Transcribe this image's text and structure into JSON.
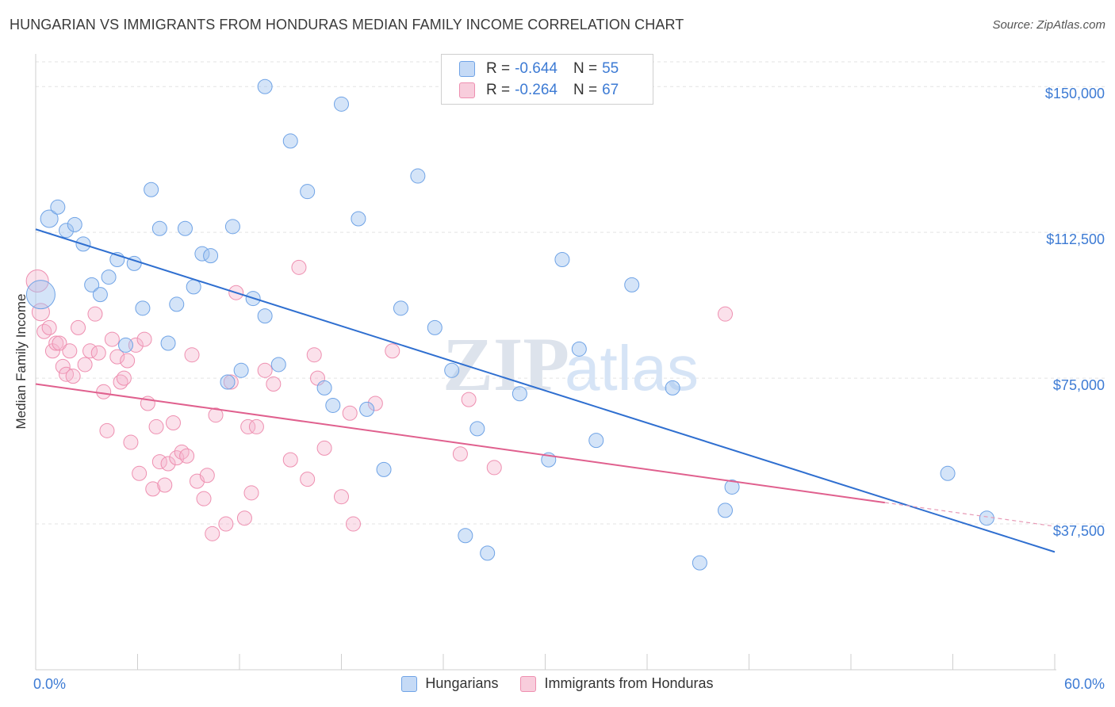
{
  "title": "HUNGARIAN VS IMMIGRANTS FROM HONDURAS MEDIAN FAMILY INCOME CORRELATION CHART",
  "source": "Source: ZipAtlas.com",
  "watermark": {
    "zip": "ZIP",
    "atlas": "atlas"
  },
  "legend": {
    "r_label": "R =",
    "n_label": "N =",
    "rows": [
      {
        "name": "Hungarians",
        "r": "-0.644",
        "n": "55",
        "color": "#6fa3e6"
      },
      {
        "name": "Immigrants from Honduras",
        "r": "-0.264",
        "n": "67",
        "color": "#ee8fb0"
      }
    ]
  },
  "chart_data": {
    "type": "scatter",
    "title": "HUNGARIAN VS IMMIGRANTS FROM HONDURAS MEDIAN FAMILY INCOME CORRELATION CHART",
    "xlabel": "",
    "ylabel": "Median Family Income",
    "xlim": [
      0,
      60
    ],
    "ylim": [
      0,
      158000
    ],
    "x_tick_labels": [
      "0.0%",
      "60.0%"
    ],
    "y_ticks": [
      37500,
      75000,
      112500,
      150000
    ],
    "y_tick_labels": [
      "$37,500",
      "$75,000",
      "$112,500",
      "$150,000"
    ],
    "series": [
      {
        "name": "Hungarians",
        "color": "#6fa3e6",
        "trend": {
          "x": [
            0,
            60
          ],
          "y": [
            113300,
            30300
          ]
        },
        "points": [
          [
            0.3,
            96500,
            18
          ],
          [
            0.8,
            116000,
            11
          ],
          [
            1.3,
            119000,
            9
          ],
          [
            1.8,
            113000,
            9
          ],
          [
            2.3,
            114500,
            9
          ],
          [
            2.8,
            109500,
            9
          ],
          [
            3.3,
            99000,
            9
          ],
          [
            3.8,
            96500,
            9
          ],
          [
            4.3,
            101000,
            9
          ],
          [
            4.8,
            105500,
            9
          ],
          [
            5.3,
            83500,
            9
          ],
          [
            5.8,
            104500,
            9
          ],
          [
            6.3,
            93000,
            9
          ],
          [
            6.8,
            123500,
            9
          ],
          [
            7.3,
            113500,
            9
          ],
          [
            7.8,
            84000,
            9
          ],
          [
            8.3,
            94000,
            9
          ],
          [
            8.8,
            113500,
            9
          ],
          [
            9.3,
            98500,
            9
          ],
          [
            9.8,
            107000,
            9
          ],
          [
            10.3,
            106500,
            9
          ],
          [
            11.3,
            74000,
            9
          ],
          [
            11.6,
            114000,
            9
          ],
          [
            12.1,
            77000,
            9
          ],
          [
            12.8,
            95500,
            9
          ],
          [
            13.5,
            150000,
            9
          ],
          [
            13.5,
            91000,
            9
          ],
          [
            14.3,
            78500,
            9
          ],
          [
            15.0,
            136000,
            9
          ],
          [
            16.0,
            123000,
            9
          ],
          [
            17.0,
            72500,
            9
          ],
          [
            17.5,
            68000,
            9
          ],
          [
            18.0,
            145500,
            9
          ],
          [
            19.0,
            116000,
            9
          ],
          [
            19.5,
            67000,
            9
          ],
          [
            20.5,
            51500,
            9
          ],
          [
            21.5,
            93000,
            9
          ],
          [
            22.5,
            127000,
            9
          ],
          [
            23.5,
            88000,
            9
          ],
          [
            24.5,
            77000,
            9
          ],
          [
            25.3,
            34500,
            9
          ],
          [
            26.0,
            62000,
            9
          ],
          [
            26.6,
            30000,
            9
          ],
          [
            28.5,
            71000,
            9
          ],
          [
            30.2,
            54000,
            9
          ],
          [
            31.0,
            105500,
            9
          ],
          [
            32.0,
            82500,
            9
          ],
          [
            33.0,
            59000,
            9
          ],
          [
            35.1,
            99000,
            9
          ],
          [
            37.5,
            72500,
            9
          ],
          [
            39.1,
            27500,
            9
          ],
          [
            40.6,
            41000,
            9
          ],
          [
            41.0,
            47000,
            9
          ],
          [
            53.7,
            50500,
            9
          ],
          [
            56.0,
            39000,
            9
          ]
        ]
      },
      {
        "name": "Immigrants from Honduras",
        "color": "#ee8fb0",
        "trend": {
          "x": [
            0,
            50
          ],
          "y": [
            73500,
            43000
          ]
        },
        "points": [
          [
            0.1,
            100000,
            14
          ],
          [
            0.3,
            92000,
            11
          ],
          [
            0.5,
            87000,
            9
          ],
          [
            0.8,
            88000,
            9
          ],
          [
            1.0,
            82000,
            9
          ],
          [
            1.2,
            84000,
            9
          ],
          [
            1.4,
            84000,
            9
          ],
          [
            1.6,
            78000,
            9
          ],
          [
            1.8,
            76000,
            9
          ],
          [
            2.0,
            82000,
            9
          ],
          [
            2.2,
            75500,
            9
          ],
          [
            2.5,
            88000,
            9
          ],
          [
            2.9,
            78500,
            9
          ],
          [
            3.2,
            82000,
            9
          ],
          [
            3.5,
            91500,
            9
          ],
          [
            3.7,
            81500,
            9
          ],
          [
            4.0,
            71500,
            9
          ],
          [
            4.2,
            61500,
            9
          ],
          [
            4.5,
            85000,
            9
          ],
          [
            4.8,
            80500,
            9
          ],
          [
            5.0,
            74000,
            9
          ],
          [
            5.2,
            75000,
            9
          ],
          [
            5.4,
            79500,
            9
          ],
          [
            5.6,
            58500,
            9
          ],
          [
            5.9,
            83500,
            9
          ],
          [
            6.1,
            50500,
            9
          ],
          [
            6.4,
            85000,
            9
          ],
          [
            6.6,
            68500,
            9
          ],
          [
            6.9,
            46500,
            9
          ],
          [
            7.1,
            62500,
            9
          ],
          [
            7.3,
            53500,
            9
          ],
          [
            7.6,
            47500,
            9
          ],
          [
            7.8,
            53000,
            9
          ],
          [
            8.1,
            63500,
            9
          ],
          [
            8.3,
            54500,
            9
          ],
          [
            8.6,
            56000,
            9
          ],
          [
            8.9,
            55000,
            9
          ],
          [
            9.2,
            81000,
            9
          ],
          [
            9.5,
            48500,
            9
          ],
          [
            9.9,
            44000,
            9
          ],
          [
            10.1,
            50000,
            9
          ],
          [
            10.4,
            35000,
            9
          ],
          [
            10.6,
            65500,
            9
          ],
          [
            11.2,
            37500,
            9
          ],
          [
            11.5,
            74000,
            9
          ],
          [
            11.8,
            97000,
            9
          ],
          [
            12.3,
            39000,
            9
          ],
          [
            12.5,
            62500,
            9
          ],
          [
            12.7,
            45500,
            9
          ],
          [
            13.0,
            62500,
            9
          ],
          [
            13.5,
            77000,
            9
          ],
          [
            14.0,
            73500,
            9
          ],
          [
            15.0,
            54000,
            9
          ],
          [
            15.5,
            103500,
            9
          ],
          [
            16.0,
            49000,
            9
          ],
          [
            16.4,
            81000,
            9
          ],
          [
            16.6,
            75000,
            9
          ],
          [
            17.0,
            57000,
            9
          ],
          [
            18.0,
            44500,
            9
          ],
          [
            18.5,
            66000,
            9
          ],
          [
            18.7,
            37500,
            9
          ],
          [
            20.0,
            68500,
            9
          ],
          [
            21.0,
            82000,
            9
          ],
          [
            25.0,
            55500,
            9
          ],
          [
            25.5,
            69500,
            9
          ],
          [
            27.0,
            52000,
            9
          ],
          [
            40.6,
            91500,
            9
          ]
        ]
      }
    ]
  }
}
